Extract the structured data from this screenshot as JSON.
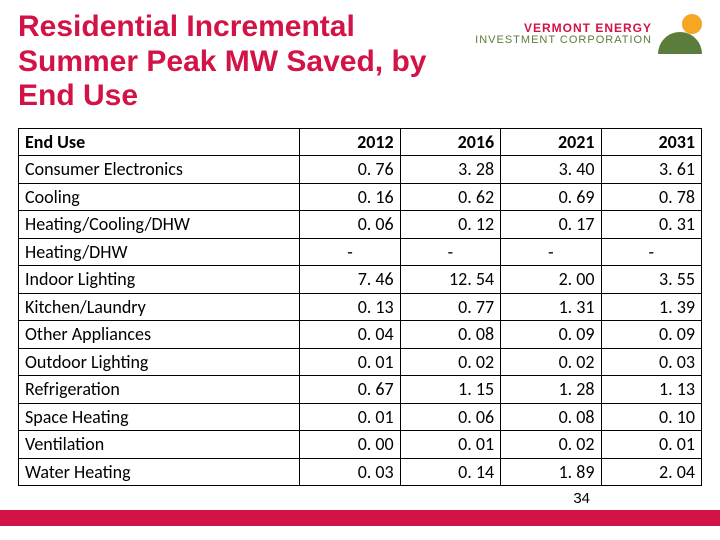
{
  "title": "Residential Incremental Summer Peak MW Saved, by End Use",
  "logo": {
    "line1": "VERMONT ENERGY",
    "line2": "INVESTMENT CORPORATION"
  },
  "table": {
    "header_label": "End Use",
    "columns": [
      "2012",
      "2016",
      "2021",
      "2031"
    ],
    "rows": [
      {
        "label": "Consumer Electronics",
        "values": [
          "0. 76",
          "3. 28",
          "3. 40",
          "3. 61"
        ]
      },
      {
        "label": "Cooling",
        "values": [
          "0. 16",
          "0. 62",
          "0. 69",
          "0. 78"
        ]
      },
      {
        "label": "Heating/Cooling/DHW",
        "values": [
          "0. 06",
          "0. 12",
          "0. 17",
          "0. 31"
        ]
      },
      {
        "label": "Heating/DHW",
        "values": [
          "-",
          "-",
          "-",
          "-"
        ]
      },
      {
        "label": "Indoor Lighting",
        "values": [
          "7. 46",
          "12. 54",
          "2. 00",
          "3. 55"
        ]
      },
      {
        "label": "Kitchen/Laundry",
        "values": [
          "0. 13",
          "0. 77",
          "1. 31",
          "1. 39"
        ]
      },
      {
        "label": "Other Appliances",
        "values": [
          "0. 04",
          "0. 08",
          "0. 09",
          "0. 09"
        ]
      },
      {
        "label": "Outdoor Lighting",
        "values": [
          "0. 01",
          "0. 02",
          "0. 02",
          "0. 03"
        ]
      },
      {
        "label": "Refrigeration",
        "values": [
          "0. 67",
          "1. 15",
          "1. 28",
          "1. 13"
        ]
      },
      {
        "label": "Space Heating",
        "values": [
          "0. 01",
          "0. 06",
          "0. 08",
          "0. 10"
        ]
      },
      {
        "label": "Ventilation",
        "values": [
          "0. 00",
          "0. 01",
          "0. 02",
          "0. 01"
        ]
      },
      {
        "label": "Water Heating",
        "values": [
          "0. 03",
          "0. 14",
          "1. 89",
          "2. 04"
        ]
      }
    ]
  },
  "page_number": "34",
  "colors": {
    "accent": "#d31245",
    "green": "#5b7c3b",
    "sun": "#f5a623",
    "border": "#000000",
    "background": "#ffffff"
  }
}
